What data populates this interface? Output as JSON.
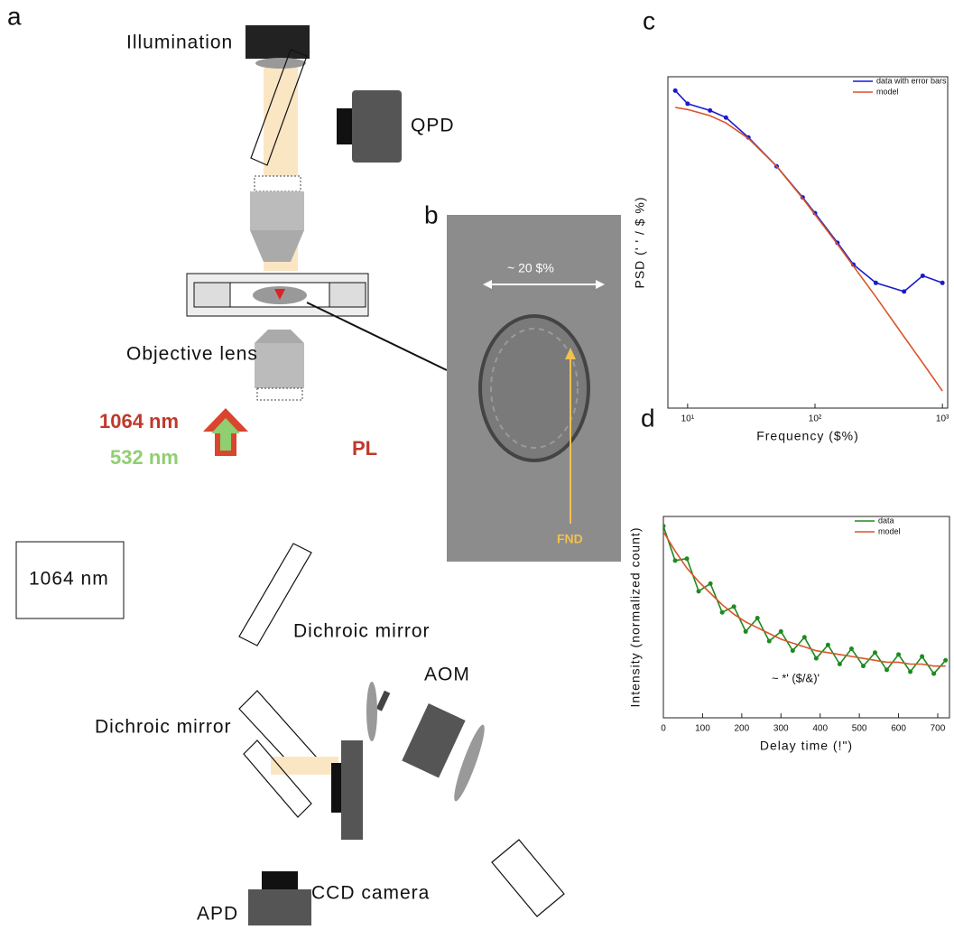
{
  "diagram": {
    "panel_a": {
      "label": "a",
      "illumination": "Illumination",
      "qpd": "QPD",
      "objective_lens": "Objective lens",
      "wavelength_ir": "1064 nm",
      "wavelength_green": "532 nm",
      "pl": "PL",
      "laser": "1064 nm",
      "dichroic_mirror_1": "Dichroic mirror",
      "dichroic_mirror_2": "Dichroic mirror",
      "aom": "AOM",
      "ccd_camera": "CCD camera",
      "apd": "APD"
    },
    "panel_b": {
      "label": "b",
      "scale": "~ 20 $%",
      "fnd": "FND"
    }
  },
  "chart_data": [
    {
      "type": "line",
      "panel_label": "c",
      "xlabel": "Frequency ($%)",
      "ylabel": "PSD (' ' / $ %)",
      "xscale": "log",
      "yscale": "log",
      "xlim": [
        7,
        1100
      ],
      "ylim": [
        0.0002,
        1
      ],
      "xticks": [
        {
          "value": 10,
          "label": "10¹"
        },
        {
          "value": 100,
          "label": "10²"
        },
        {
          "value": 1000,
          "label": "10³"
        }
      ],
      "legend": "upper right",
      "x": [
        8,
        10,
        15,
        20,
        30,
        50,
        80,
        100,
        150,
        200,
        300,
        500,
        700,
        1000
      ],
      "series": [
        {
          "name": "data with error bars",
          "color": "#1a1acc",
          "markers": true,
          "values": [
            0.7,
            0.5,
            0.42,
            0.35,
            0.21,
            0.1,
            0.045,
            0.03,
            0.014,
            0.008,
            0.005,
            0.004,
            0.006,
            0.005
          ]
        },
        {
          "name": "model",
          "color": "#d9542b",
          "markers": false,
          "values": [
            0.454,
            0.431,
            0.368,
            0.305,
            0.205,
            0.1,
            0.044,
            0.029,
            0.0135,
            0.0077,
            0.0035,
            0.00125,
            0.00064,
            0.00031
          ]
        }
      ]
    },
    {
      "type": "line",
      "panel_label": "d",
      "xlabel": "Delay time (!\")",
      "ylabel": "Intensity (normalized count)",
      "annotation": "~ *' ($/&)'",
      "xlim": [
        0,
        730
      ],
      "ylim": [
        0,
        1.05
      ],
      "xticks": [
        0,
        100,
        200,
        300,
        400,
        500,
        600,
        700
      ],
      "legend": "upper right",
      "x": [
        0,
        30,
        60,
        90,
        120,
        150,
        180,
        210,
        240,
        270,
        300,
        330,
        360,
        390,
        420,
        450,
        480,
        510,
        540,
        570,
        600,
        630,
        660,
        690,
        720
      ],
      "series": [
        {
          "name": "data",
          "color": "#1f8a1f",
          "markers": true,
          "values": [
            1.0,
            0.82,
            0.83,
            0.66,
            0.7,
            0.55,
            0.58,
            0.45,
            0.52,
            0.4,
            0.45,
            0.35,
            0.42,
            0.31,
            0.38,
            0.28,
            0.36,
            0.27,
            0.34,
            0.25,
            0.33,
            0.24,
            0.32,
            0.23,
            0.3
          ]
        },
        {
          "name": "model",
          "color": "#d9542b",
          "markers": false,
          "values": [
            0.97,
            0.87,
            0.78,
            0.71,
            0.65,
            0.59,
            0.54,
            0.5,
            0.47,
            0.44,
            0.41,
            0.39,
            0.37,
            0.35,
            0.34,
            0.33,
            0.32,
            0.31,
            0.3,
            0.29,
            0.29,
            0.28,
            0.28,
            0.27,
            0.27
          ]
        }
      ]
    }
  ]
}
